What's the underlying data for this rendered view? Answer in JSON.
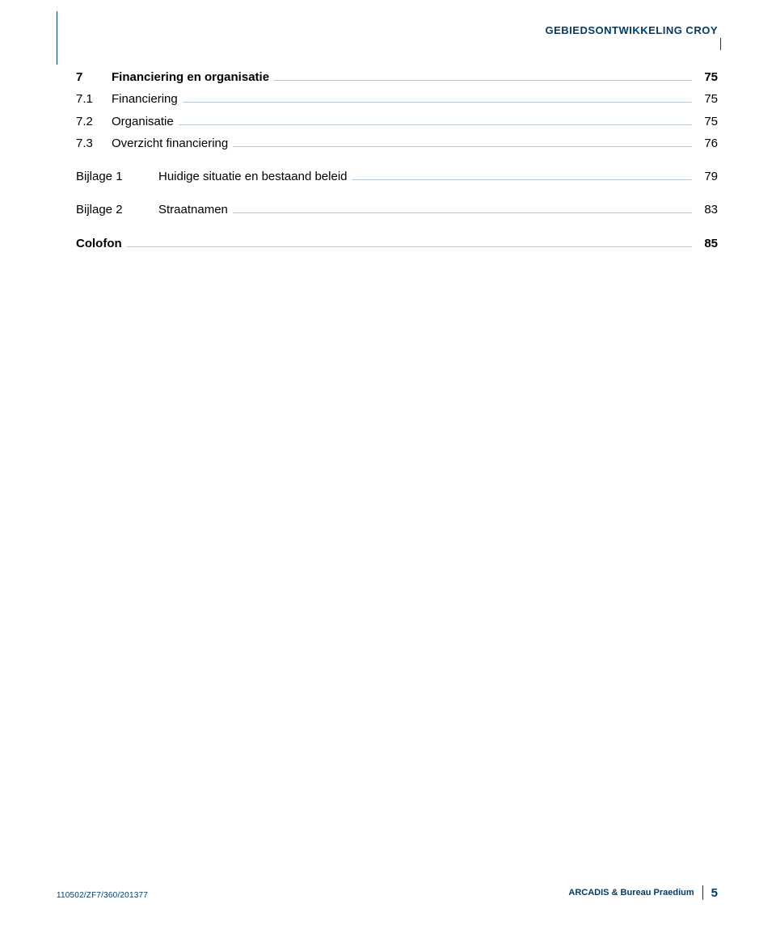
{
  "header": {
    "title": "GEBIEDSONTWIKKELING CROY"
  },
  "toc": {
    "entries": [
      {
        "num": "7",
        "text": "Financiering en organisatie",
        "page": "75",
        "bold": true,
        "kind": "num"
      },
      {
        "num": "7.1",
        "text": "Financiering",
        "page": "75",
        "bold": false,
        "kind": "num"
      },
      {
        "num": "7.2",
        "text": "Organisatie",
        "page": "75",
        "bold": false,
        "kind": "num"
      },
      {
        "num": "7.3",
        "text": "Overzicht financiering",
        "page": "76",
        "bold": false,
        "kind": "num"
      },
      {
        "label": "Bijlage 1",
        "text": "Huidige situatie en bestaand beleid",
        "page": "79",
        "bold": false,
        "kind": "label",
        "spaced": true
      },
      {
        "label": "Bijlage 2",
        "text": "Straatnamen",
        "page": "83",
        "bold": false,
        "kind": "label",
        "spaced": true
      },
      {
        "label": "Colofon",
        "text": "",
        "page": "85",
        "bold": true,
        "kind": "colofon",
        "spaced": true
      }
    ]
  },
  "footer": {
    "left": "110502/ZF7/360/201377",
    "right_text": "ARCADIS & Bureau Praedium",
    "page_number": "5"
  },
  "colors": {
    "primary": "#003c69",
    "leader": "#b5c6d6",
    "text": "#000000",
    "background": "#ffffff"
  }
}
